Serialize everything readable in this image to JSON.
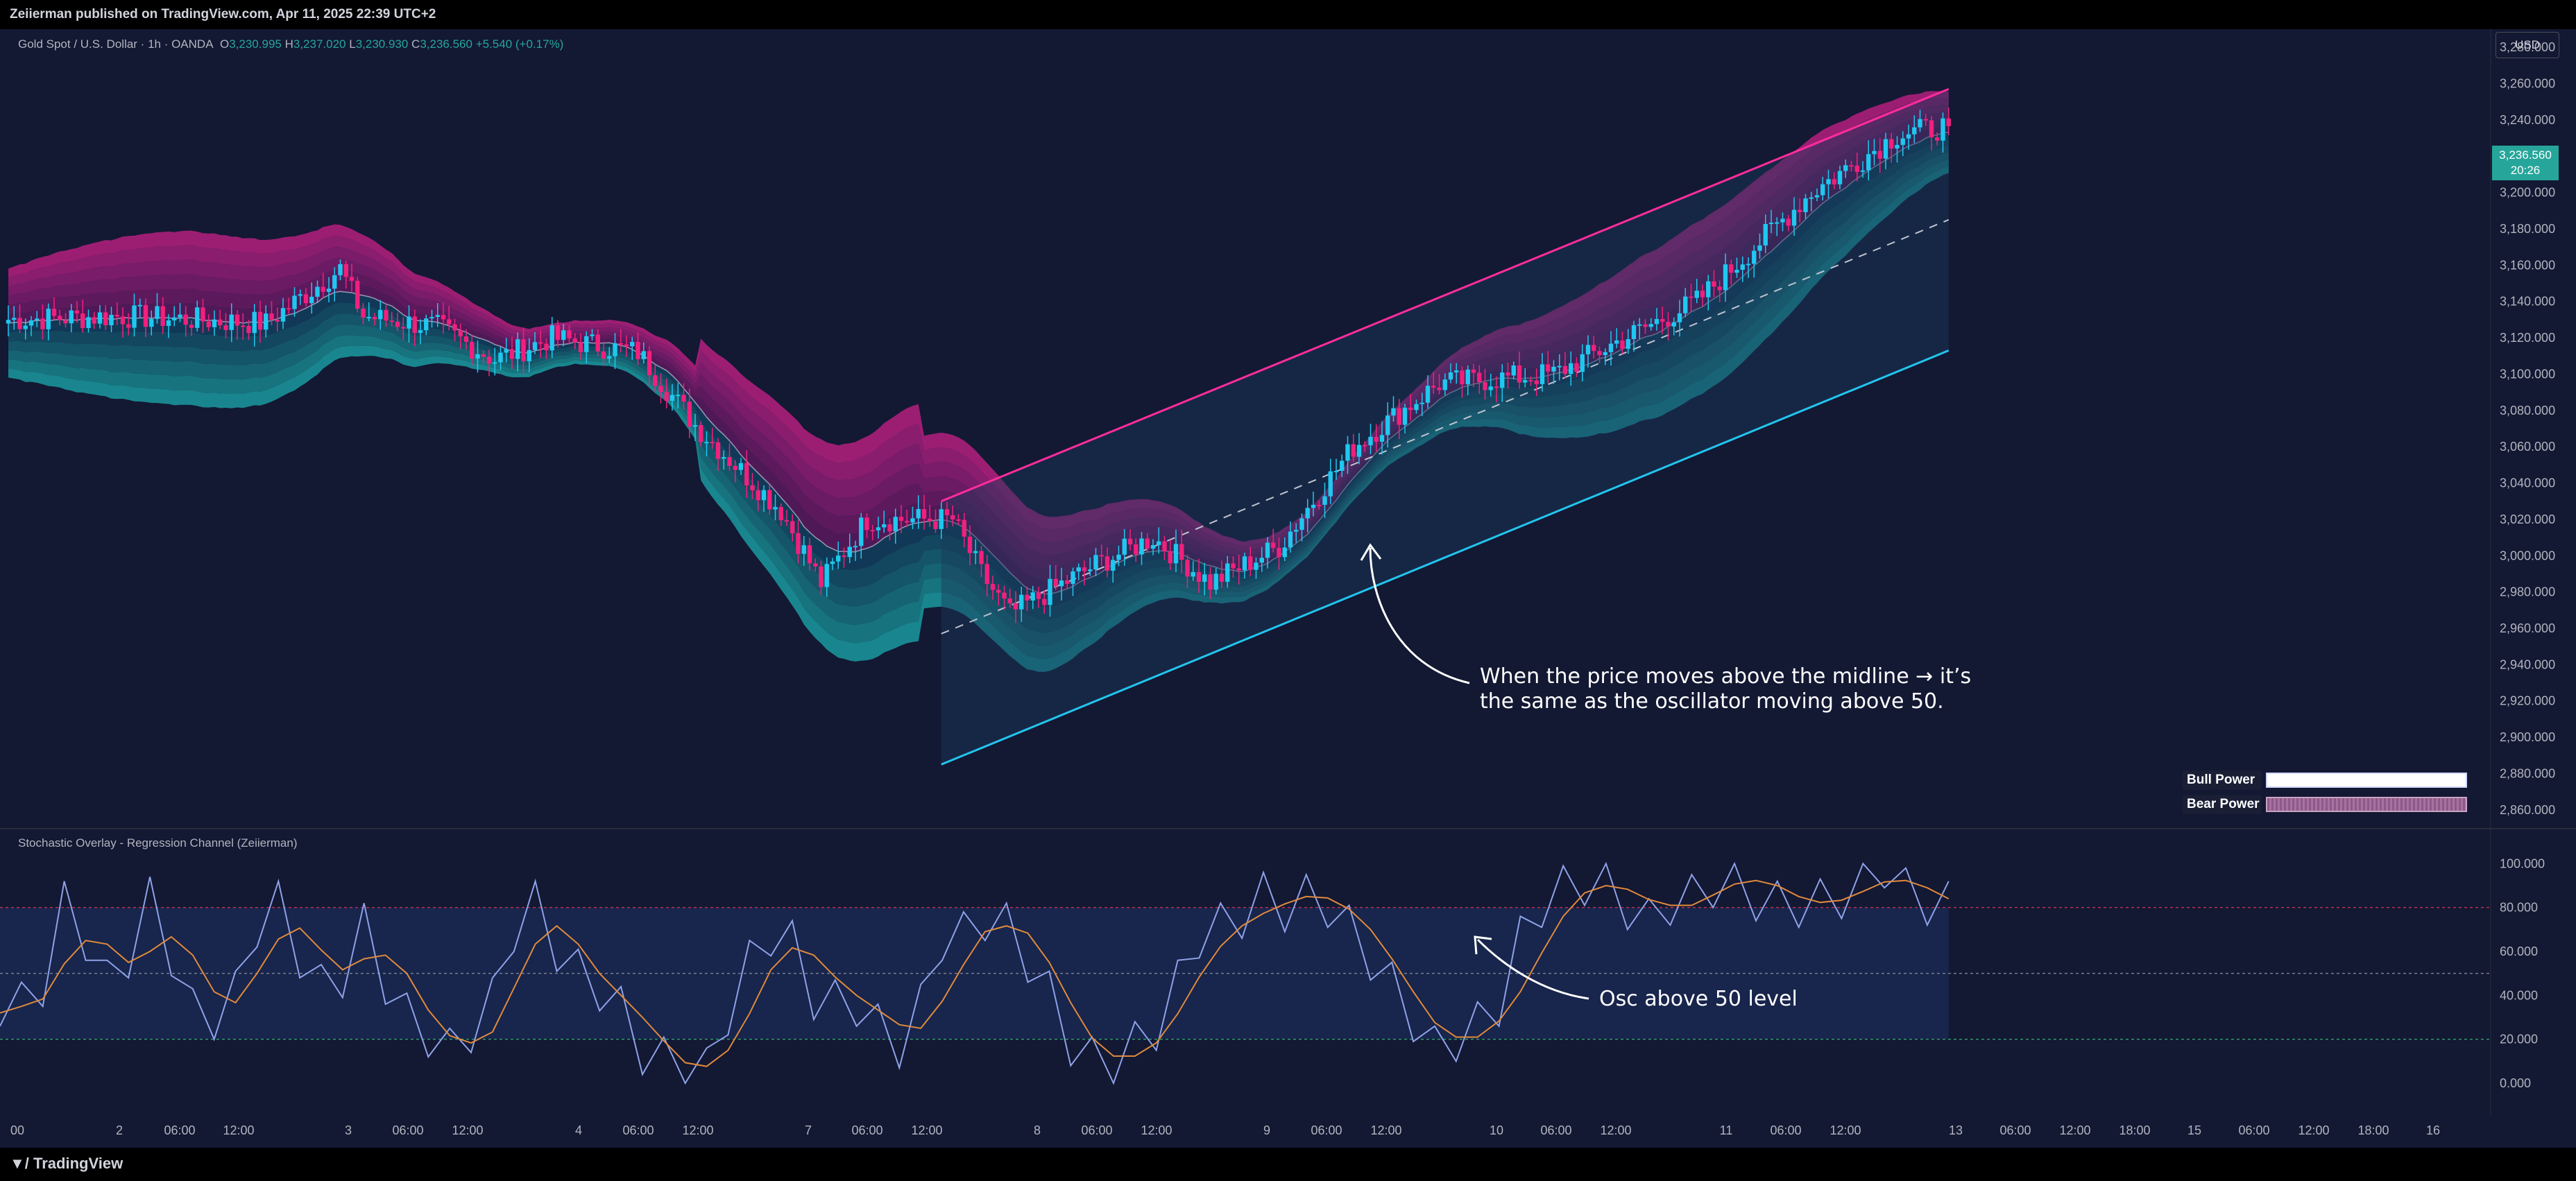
{
  "publisher": "Zeiierman published on TradingView.com, Apr 11, 2025 22:39 UTC+2",
  "footer_brand": "TradingView",
  "header": {
    "symbol": "Gold Spot / U.S. Dollar · 1h · OANDA",
    "open": "3,230.995",
    "high": "3,237.020",
    "low": "3,230.930",
    "close": "3,236.560",
    "change": "+5.540 (+0.17%)"
  },
  "currency": "USD",
  "last_price": "3,236.560",
  "countdown": "20:26",
  "indicator_title": "Stochastic Overlay - Regression Channel (Zeiierman)",
  "legend": {
    "bull": "Bull Power",
    "bear": "Bear Power"
  },
  "annotations": {
    "main": [
      "When the price moves above the midline → it’s",
      "the same as the oscillator moving above 50."
    ],
    "osc": "Osc above 50 level"
  },
  "colors": {
    "background": "#131833",
    "bull": "#1ec8f0",
    "bear": "#f0207d",
    "channel_upper": "#ff2d9b",
    "channel_lower": "#22c5ee",
    "k_line": "#8ea2e8",
    "d_line": "#e08a3c",
    "osc_zone": "#1b2a55"
  },
  "price_axis": [
    "3,280.000",
    "3,260.000",
    "3,240.000",
    "3,220.000",
    "3,200.000",
    "3,180.000",
    "3,160.000",
    "3,140.000",
    "3,120.000",
    "3,100.000",
    "3,080.000",
    "3,060.000",
    "3,040.000",
    "3,020.000",
    "3,000.000",
    "2,980.000",
    "2,960.000",
    "2,940.000",
    "2,920.000",
    "2,900.000",
    "2,880.000",
    "2,860.000"
  ],
  "osc_axis": [
    "100.000",
    "80.000",
    "60.000",
    "40.000",
    "20.000",
    "0.000"
  ],
  "time_axis": [
    "00",
    "2",
    "06:00",
    "12:00",
    "3",
    "06:00",
    "12:00",
    "4",
    "06:00",
    "12:00",
    "7",
    "06:00",
    "12:00",
    "8",
    "06:00",
    "12:00",
    "9",
    "06:00",
    "12:00",
    "10",
    "06:00",
    "12:00",
    "11",
    "06:00",
    "12:00",
    "13",
    "06:00",
    "12:00",
    "18:00",
    "15",
    "06:00",
    "12:00",
    "18:00",
    "16"
  ],
  "chart_data": {
    "type": "candlestick",
    "ylim": [
      2850,
      3290
    ],
    "anchors": [
      [
        0,
        3130
      ],
      [
        20,
        3132
      ],
      [
        45,
        3128
      ],
      [
        58,
        3158
      ],
      [
        62,
        3132
      ],
      [
        75,
        3126
      ],
      [
        85,
        3108
      ],
      [
        95,
        3120
      ],
      [
        110,
        3112
      ],
      [
        120,
        3072
      ],
      [
        135,
        3025
      ],
      [
        142,
        2985
      ],
      [
        150,
        3020
      ],
      [
        165,
        3020
      ],
      [
        170,
        2990
      ],
      [
        175,
        2968
      ],
      [
        190,
        2995
      ],
      [
        200,
        3010
      ],
      [
        210,
        2985
      ],
      [
        222,
        3005
      ],
      [
        235,
        3060
      ],
      [
        250,
        3095
      ],
      [
        270,
        3100
      ],
      [
        295,
        3140
      ],
      [
        315,
        3200
      ],
      [
        330,
        3232
      ],
      [
        339,
        3236.56
      ]
    ],
    "channel": {
      "upper_start": 3030,
      "upper_end": 3257,
      "mid_start": 2957,
      "mid_end": 3185,
      "lower_start": 2885,
      "lower_end": 3113,
      "start_bar": 163,
      "end_bar": 339
    },
    "stochastic": {
      "ylim": [
        -12,
        108
      ],
      "levels": [
        80,
        50,
        20
      ],
      "k": [
        32,
        38,
        45,
        80,
        70,
        40,
        55,
        85,
        60,
        30,
        35,
        45,
        70,
        82,
        60,
        40,
        55,
        75,
        45,
        30,
        25,
        10,
        20,
        40,
        70,
        80,
        65,
        45,
        40,
        35,
        15,
        8,
        5,
        10,
        30,
        55,
        70,
        60,
        45,
        40,
        35,
        25,
        20,
        30,
        62,
        70,
        75,
        70,
        60,
        35,
        15,
        12,
        10,
        15,
        30,
        50,
        65,
        72,
        78,
        82,
        85,
        88,
        80,
        70,
        60,
        40,
        25,
        18,
        20,
        25,
        40,
        60,
        78,
        90,
        92,
        88,
        85,
        78,
        80,
        85,
        92,
        95,
        90,
        85,
        80,
        82,
        88,
        92,
        95,
        90,
        82,
        80
      ]
    }
  }
}
